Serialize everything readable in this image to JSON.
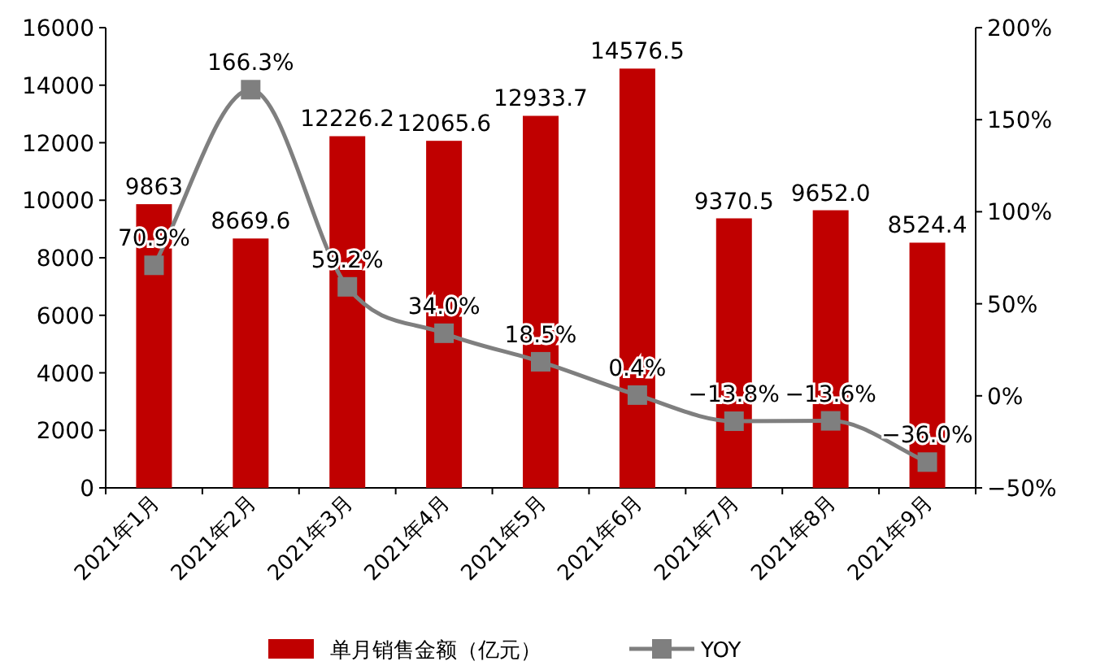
{
  "chart_data": {
    "type": "bar",
    "categories": [
      "2021年1月",
      "2021年2月",
      "2021年3月",
      "2021年4月",
      "2021年5月",
      "2021年6月",
      "2021年7月",
      "2021年8月",
      "2021年9月"
    ],
    "series": [
      {
        "name": "单月销售金额（亿元）",
        "color": "#c00000",
        "values": [
          9863,
          8669.6,
          12226.2,
          12065.6,
          12933.7,
          14576.5,
          9370.5,
          9652.0,
          8524.4
        ],
        "value_labels": [
          "9863",
          "8669.6",
          "12226.2",
          "12065.6",
          "12933.7",
          "14576.5",
          "9370.5",
          "9652.0",
          "8524.4"
        ]
      },
      {
        "name": "YOY",
        "type": "line",
        "axis": "y2",
        "color": "#7f7f7f",
        "marker": "square",
        "values": [
          70.9,
          166.3,
          59.2,
          34.0,
          18.5,
          0.4,
          -13.8,
          -13.6,
          -36.0
        ],
        "value_labels": [
          "70.9%",
          "166.3%",
          "59.2%",
          "34.0%",
          "18.5%",
          "0.4%",
          "−13.8%",
          "−13.6%",
          "−36.0%"
        ]
      }
    ],
    "ylim": [
      0,
      16000
    ],
    "yticks": [
      0,
      2000,
      4000,
      6000,
      8000,
      10000,
      12000,
      14000,
      16000
    ],
    "y2lim": [
      -50,
      200
    ],
    "y2ticks": [
      {
        "value": -50,
        "label": "−50%"
      },
      {
        "value": 0,
        "label": "0%"
      },
      {
        "value": 50,
        "label": "50%"
      },
      {
        "value": 100,
        "label": "100%"
      },
      {
        "value": 150,
        "label": "150%"
      },
      {
        "value": 200,
        "label": "200%"
      }
    ],
    "legend": "bottom"
  }
}
